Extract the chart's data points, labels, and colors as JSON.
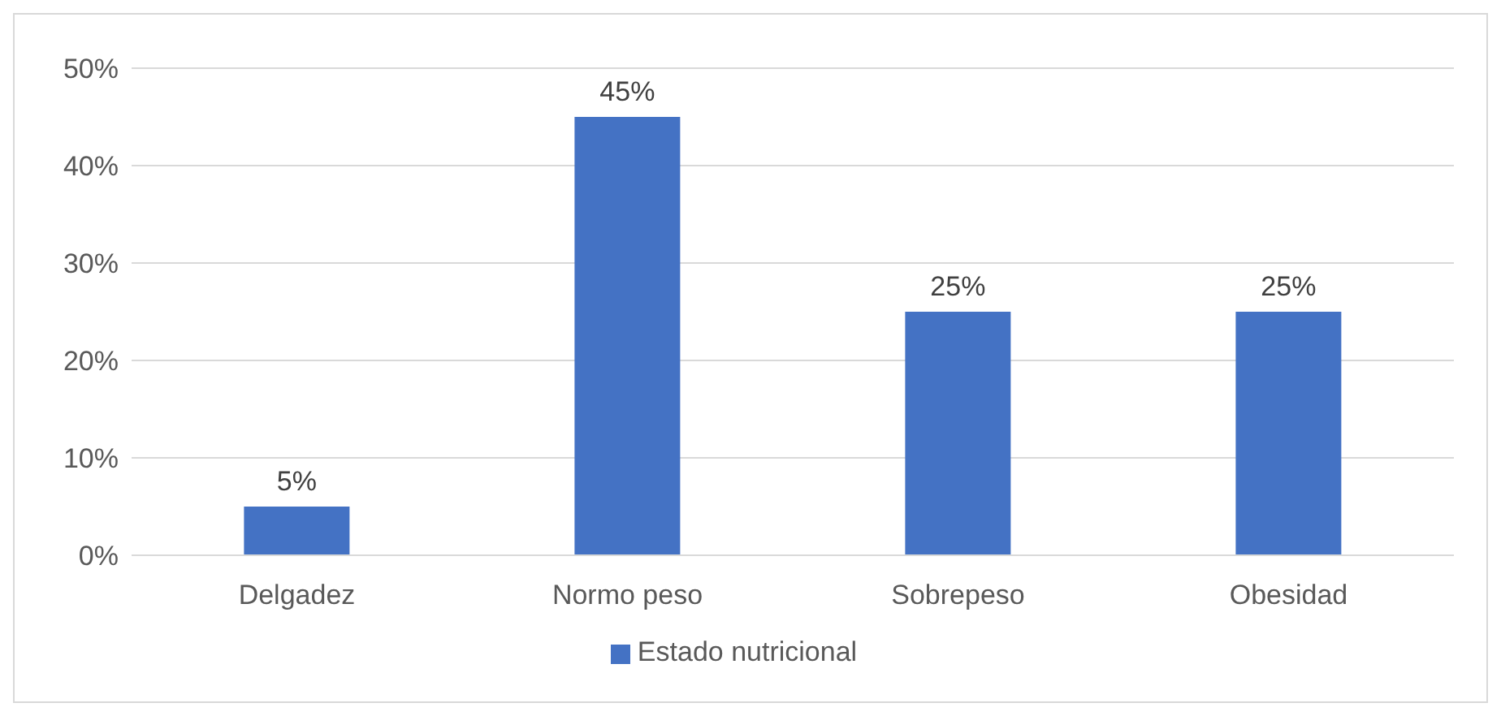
{
  "chart_data": {
    "type": "bar",
    "categories": [
      "Delgadez",
      "Normo peso",
      "Sobrepeso",
      "Obesidad"
    ],
    "series": [
      {
        "name": "Estado nutricional",
        "color": "#4472c4",
        "values": [
          5,
          45,
          25,
          25
        ]
      }
    ],
    "value_labels": [
      "5%",
      "45%",
      "25%",
      "25%"
    ],
    "ylim": [
      0,
      50
    ],
    "yticks": [
      {
        "value": 0,
        "label": "0%"
      },
      {
        "value": 10,
        "label": "10%"
      },
      {
        "value": 20,
        "label": "20%"
      },
      {
        "value": 30,
        "label": "30%"
      },
      {
        "value": 40,
        "label": "40%"
      },
      {
        "value": 50,
        "label": "50%"
      }
    ],
    "grid": "y",
    "legend": "bottom"
  }
}
